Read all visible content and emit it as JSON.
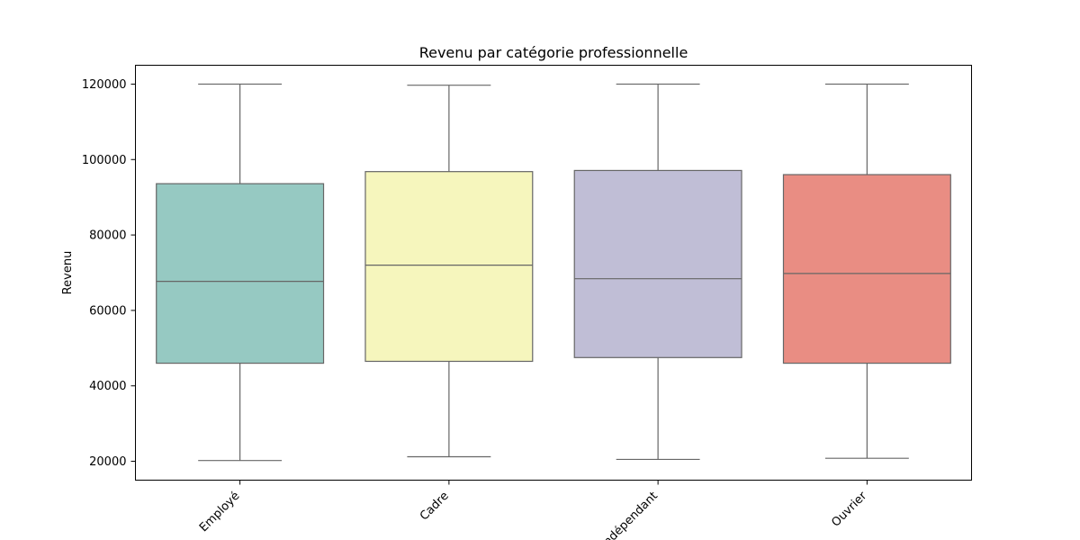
{
  "chart_data": {
    "type": "box",
    "title": "Revenu par catégorie professionnelle",
    "xlabel": "",
    "ylabel": "Revenu",
    "categories": [
      "Employé",
      "Cadre",
      "Indépendant",
      "Ouvrier"
    ],
    "boxes": [
      {
        "category": "Employé",
        "min": 20200,
        "q1": 46000,
        "median": 67700,
        "q3": 93600,
        "max": 120000,
        "color": "#96c9c2"
      },
      {
        "category": "Cadre",
        "min": 21200,
        "q1": 46500,
        "median": 72000,
        "q3": 96800,
        "max": 119700,
        "color": "#f6f6bd"
      },
      {
        "category": "Indépendant",
        "min": 20500,
        "q1": 47500,
        "median": 68400,
        "q3": 97100,
        "max": 120000,
        "color": "#c0bed6"
      },
      {
        "category": "Ouvrier",
        "min": 20800,
        "q1": 46000,
        "median": 69800,
        "q3": 96000,
        "max": 120000,
        "color": "#e98d83"
      }
    ],
    "yticks": [
      20000,
      40000,
      60000,
      80000,
      100000,
      120000
    ],
    "ylim": [
      15000,
      125000
    ],
    "grid": false,
    "legend": "none",
    "line_color": "#666666"
  }
}
